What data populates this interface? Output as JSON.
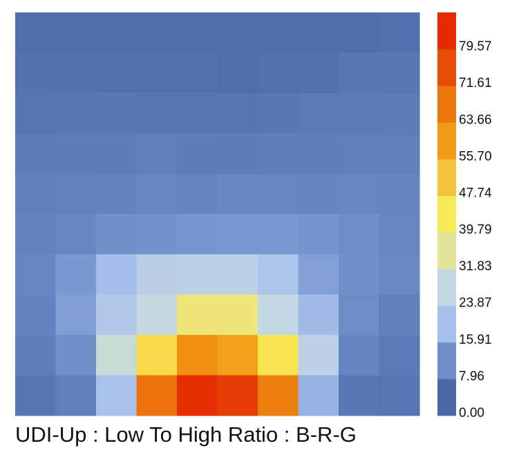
{
  "chart_data": {
    "type": "heatmap",
    "title": "UDI-Up : Low To High Ratio : B-R-G",
    "rows": 10,
    "cols": 10,
    "values": [
      [
        1.2,
        1.2,
        1.2,
        1.2,
        1.2,
        1.2,
        1.2,
        1.2,
        1.2,
        1.6
      ],
      [
        2.2,
        2.2,
        2.0,
        1.6,
        1.6,
        1.2,
        1.6,
        2.0,
        3.4,
        3.4
      ],
      [
        3.0,
        3.4,
        3.4,
        3.2,
        3.2,
        3.0,
        3.4,
        3.8,
        4.2,
        4.4
      ],
      [
        4.4,
        4.6,
        4.6,
        5.2,
        4.6,
        4.6,
        5.0,
        5.0,
        5.2,
        5.2
      ],
      [
        5.6,
        5.8,
        6.0,
        6.8,
        6.4,
        7.0,
        7.2,
        6.6,
        6.8,
        6.6
      ],
      [
        6.2,
        7.2,
        9.0,
        9.2,
        10.2,
        10.4,
        10.6,
        9.8,
        8.6,
        6.8
      ],
      [
        7.0,
        10.6,
        17.0,
        23.0,
        23.8,
        23.8,
        19.2,
        11.8,
        9.0,
        7.4
      ],
      [
        6.2,
        11.4,
        20.0,
        27.0,
        39.4,
        39.4,
        26.0,
        16.4,
        8.4,
        5.2
      ],
      [
        5.0,
        9.0,
        28.0,
        47.0,
        64.0,
        60.0,
        45.0,
        24.0,
        6.5,
        4.0
      ],
      [
        3.2,
        5.2,
        18.0,
        71.0,
        86.0,
        83.0,
        68.0,
        15.0,
        3.4,
        3.0
      ]
    ],
    "colorbar": {
      "min": 0.0,
      "max": 87.53,
      "tick_labels": [
        "0.00",
        "7.96",
        "15.91",
        "23.87",
        "31.83",
        "39.79",
        "47.74",
        "55.70",
        "63.66",
        "71.61",
        "79.57"
      ],
      "colors": [
        "#4a69a8",
        "#6e8fc8",
        "#a8c0ec",
        "#c3d7e3",
        "#e3e49c",
        "#f8ea54",
        "#f6c23a",
        "#f29b16",
        "#ec770d",
        "#e84d05",
        "#e42a02"
      ]
    }
  }
}
